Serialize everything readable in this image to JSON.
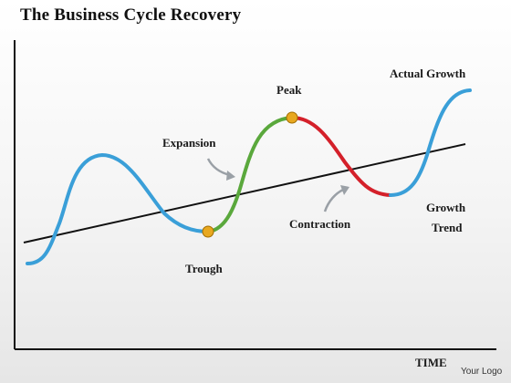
{
  "title": "The Business Cycle Recovery",
  "labels": {
    "expansion": "Expansion",
    "peak": "Peak",
    "actual_growth": "Actual Growth",
    "trough": "Trough",
    "contraction": "Contraction",
    "growth_trend_line1": "Growth",
    "growth_trend_line2": "Trend",
    "x_axis": "TIME",
    "logo": "Your Logo"
  },
  "colors": {
    "curve_blue": "#3a9fd8",
    "expansion_green": "#5aa83c",
    "contraction_red": "#d4202a",
    "marker_gold": "#e8a820",
    "axis": "#111111",
    "arrow_gray": "#9aa0a6"
  }
}
